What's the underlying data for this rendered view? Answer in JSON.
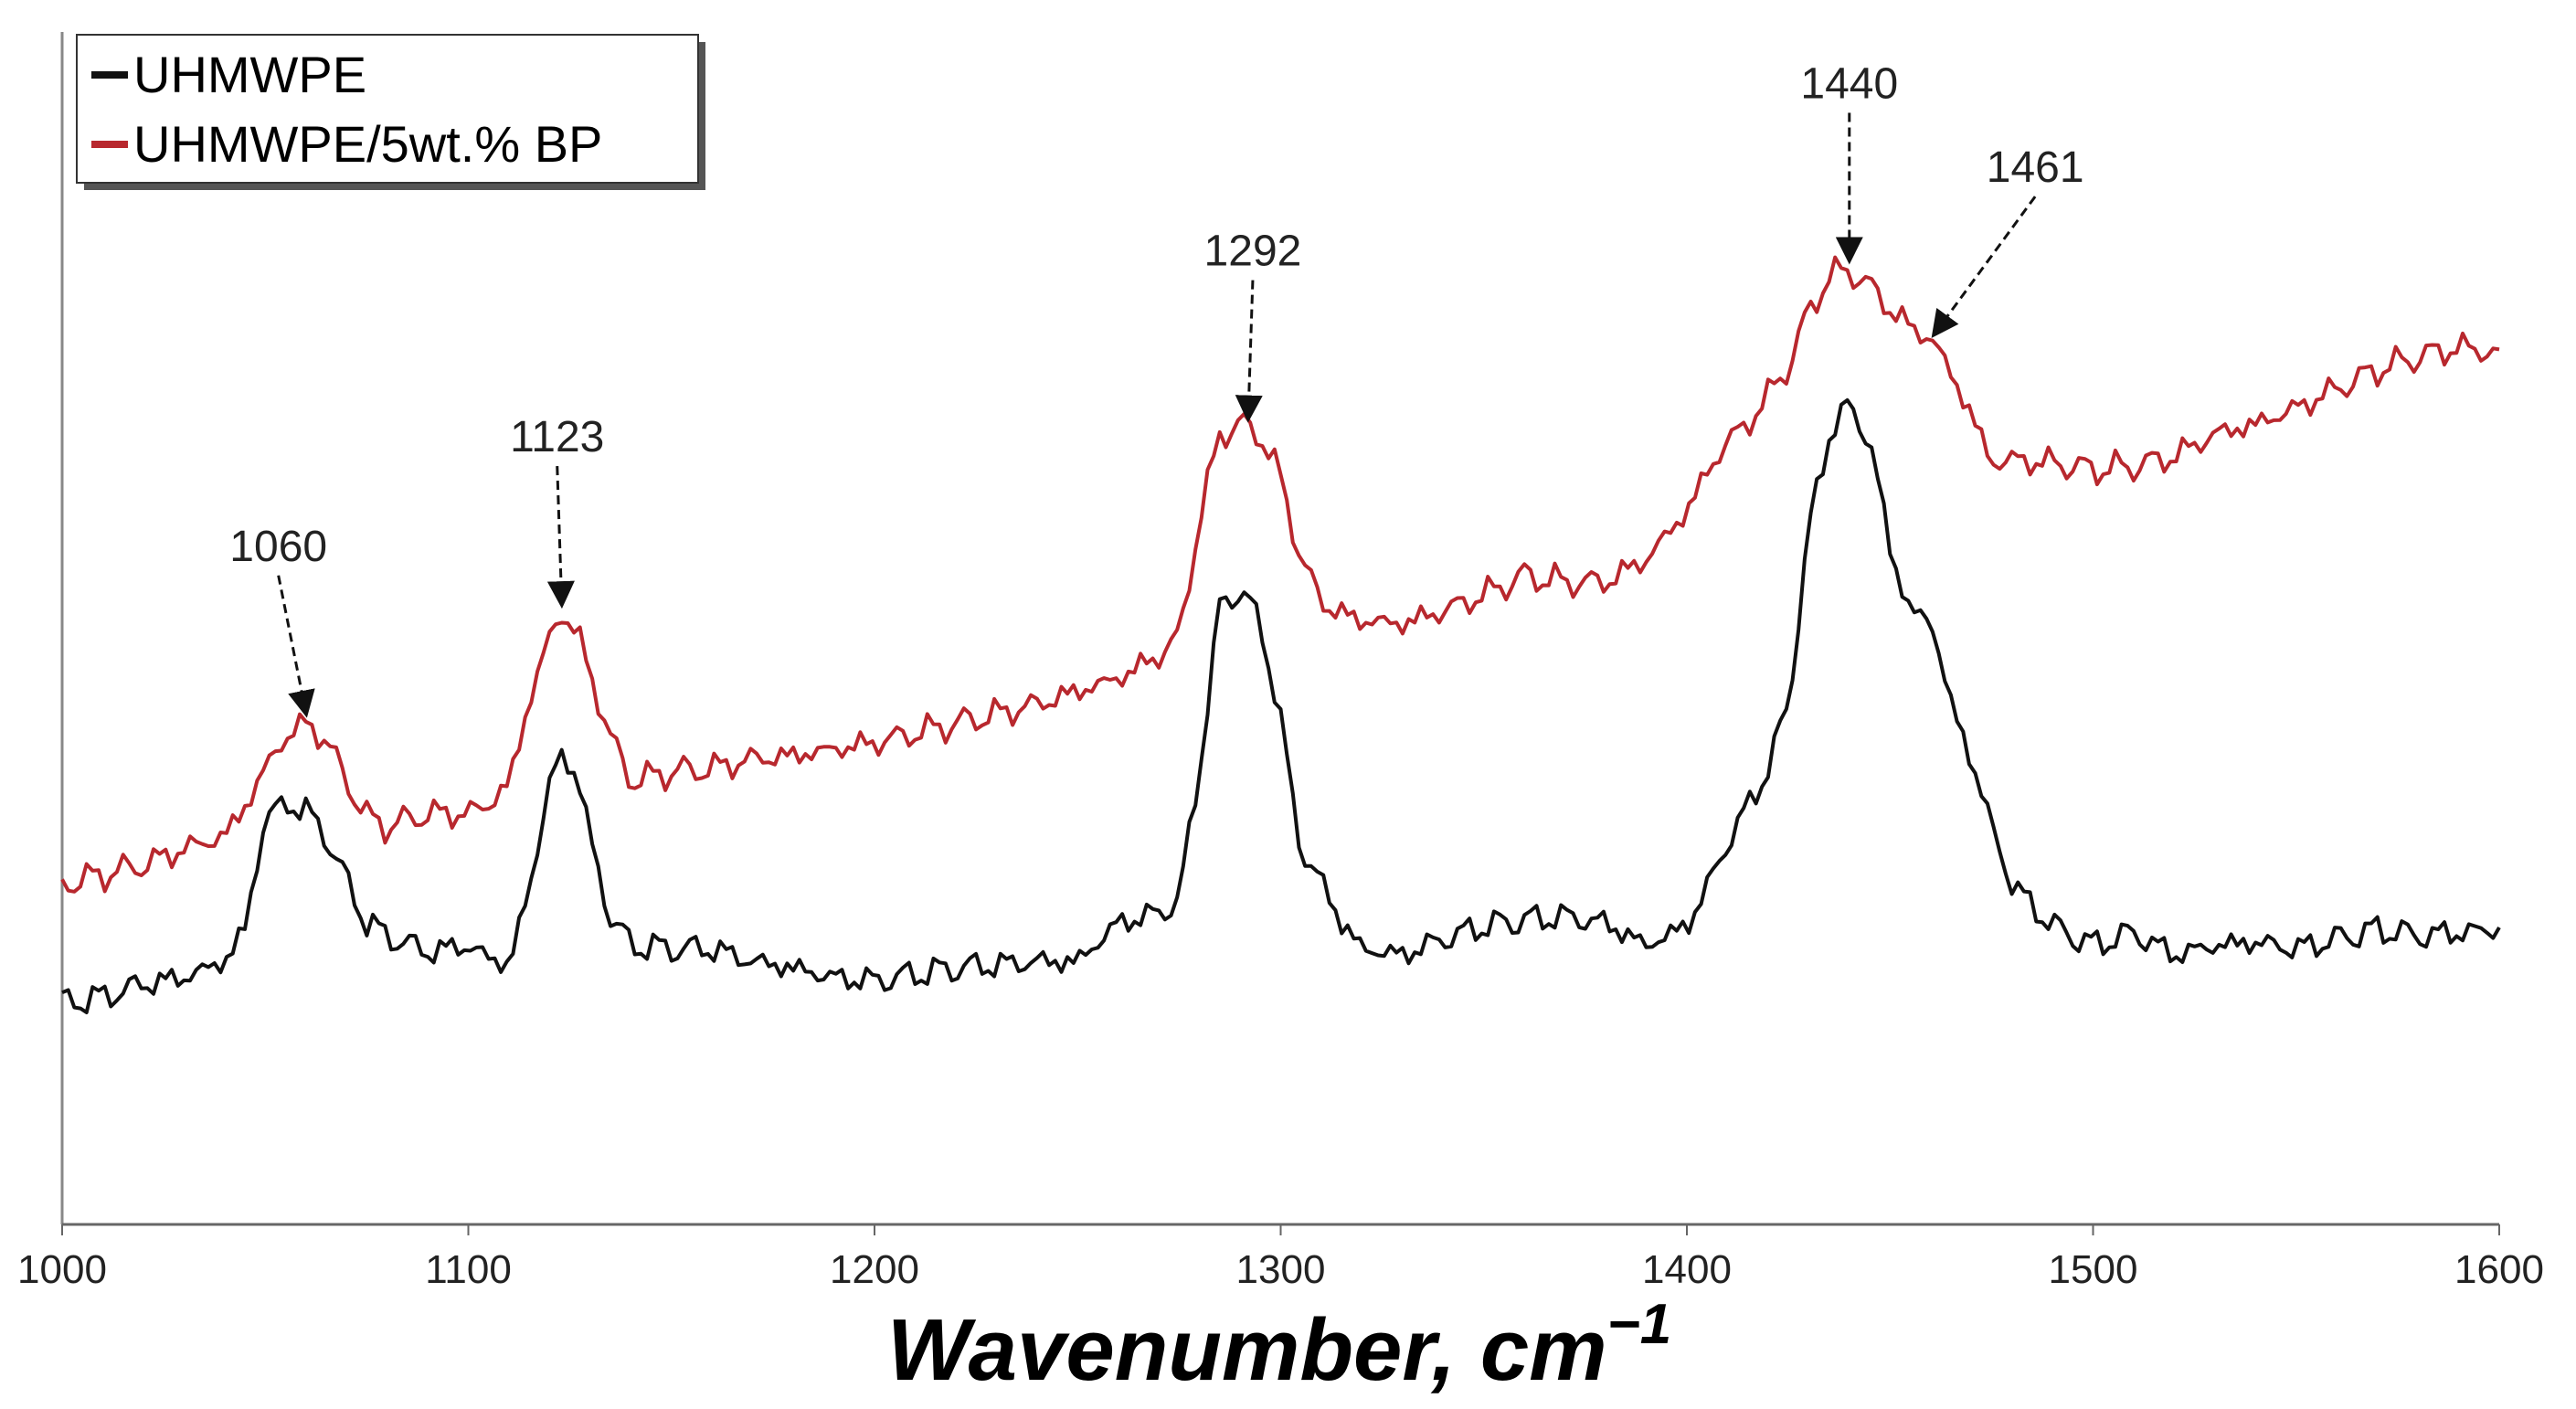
{
  "chart_data": {
    "type": "line",
    "title": "",
    "xlabel": "Wavenumber, cm",
    "xlabel_sup": "−1",
    "ylabel": "",
    "xlim": [
      1000,
      1600
    ],
    "x_ticks": [
      "1000",
      "1100",
      "1200",
      "1300",
      "1400",
      "1500",
      "1600"
    ],
    "grid": false,
    "legend_position": "top-left",
    "series": [
      {
        "name": "UHMWPE",
        "color": "#111111",
        "x": [
          1000,
          1010,
          1020,
          1030,
          1040,
          1045,
          1050,
          1055,
          1060,
          1065,
          1070,
          1075,
          1080,
          1090,
          1100,
          1105,
          1110,
          1115,
          1120,
          1123,
          1127,
          1130,
          1135,
          1140,
          1150,
          1160,
          1170,
          1180,
          1190,
          1200,
          1210,
          1220,
          1230,
          1240,
          1250,
          1260,
          1270,
          1275,
          1280,
          1285,
          1290,
          1295,
          1300,
          1305,
          1310,
          1315,
          1320,
          1330,
          1340,
          1350,
          1360,
          1370,
          1380,
          1390,
          1400,
          1405,
          1410,
          1415,
          1420,
          1425,
          1430,
          1435,
          1440,
          1445,
          1450,
          1455,
          1460,
          1465,
          1470,
          1475,
          1480,
          1490,
          1500,
          1510,
          1520,
          1530,
          1540,
          1550,
          1560,
          1570,
          1580,
          1590,
          1600
        ],
        "y": [
          0.0,
          0.4,
          1.2,
          1.6,
          2.6,
          4.6,
          11.6,
          12.4,
          12.0,
          10.4,
          7.6,
          5.0,
          4.2,
          3.2,
          3.6,
          2.8,
          2.4,
          7.0,
          13.8,
          15.2,
          14.4,
          10.0,
          5.4,
          3.6,
          3.4,
          3.4,
          2.6,
          2.2,
          1.6,
          1.4,
          1.8,
          2.2,
          2.4,
          2.6,
          2.6,
          5.0,
          5.6,
          6.4,
          14.6,
          24.6,
          25.8,
          23.6,
          17.6,
          9.4,
          7.6,
          5.0,
          3.4,
          3.0,
          4.0,
          4.8,
          5.2,
          5.4,
          5.0,
          3.6,
          4.8,
          7.2,
          10.0,
          12.2,
          14.6,
          18.6,
          29.4,
          35.4,
          37.2,
          35.0,
          28.4,
          24.2,
          24.0,
          18.6,
          15.2,
          11.0,
          7.4,
          4.8,
          3.6,
          4.4,
          3.0,
          3.6,
          3.8,
          3.4,
          4.0,
          4.6,
          4.2,
          4.4,
          4.6
        ]
      },
      {
        "name": "UHMWPE/5wt.% BP",
        "color": "#b8282e",
        "x": [
          1000,
          1010,
          1020,
          1030,
          1040,
          1045,
          1050,
          1055,
          1060,
          1065,
          1070,
          1075,
          1080,
          1090,
          1100,
          1105,
          1110,
          1115,
          1120,
          1123,
          1127,
          1130,
          1135,
          1140,
          1150,
          1160,
          1170,
          1180,
          1190,
          1200,
          1210,
          1220,
          1230,
          1240,
          1250,
          1260,
          1270,
          1275,
          1280,
          1285,
          1290,
          1295,
          1300,
          1305,
          1310,
          1315,
          1320,
          1330,
          1340,
          1350,
          1360,
          1370,
          1380,
          1390,
          1400,
          1405,
          1410,
          1415,
          1420,
          1425,
          1430,
          1435,
          1440,
          1445,
          1450,
          1455,
          1460,
          1465,
          1470,
          1475,
          1480,
          1490,
          1500,
          1510,
          1520,
          1530,
          1540,
          1550,
          1560,
          1570,
          1580,
          1590,
          1600
        ],
        "y": [
          7.4,
          8.0,
          8.6,
          9.6,
          10.4,
          12.2,
          14.6,
          16.6,
          17.4,
          16.4,
          13.8,
          11.6,
          11.0,
          11.8,
          11.8,
          12.4,
          13.6,
          18.8,
          22.8,
          24.2,
          23.0,
          20.4,
          16.6,
          13.8,
          14.4,
          14.6,
          15.2,
          15.4,
          15.8,
          16.2,
          16.8,
          17.4,
          18.0,
          18.6,
          19.4,
          20.2,
          21.6,
          22.8,
          30.0,
          35.4,
          36.0,
          35.4,
          32.6,
          27.6,
          25.0,
          24.2,
          23.8,
          23.6,
          24.4,
          25.4,
          26.6,
          26.2,
          26.2,
          27.6,
          30.6,
          33.0,
          35.0,
          36.0,
          37.8,
          39.6,
          43.0,
          45.2,
          45.6,
          44.6,
          43.2,
          42.0,
          41.4,
          39.2,
          36.6,
          33.6,
          33.8,
          33.6,
          33.2,
          33.4,
          34.0,
          35.4,
          36.0,
          37.0,
          38.2,
          39.4,
          40.2,
          40.8,
          40.4
        ]
      }
    ],
    "annotations": [
      {
        "text": "1060",
        "x": 1060,
        "series": "UHMWPE/5wt.% BP"
      },
      {
        "text": "1123",
        "x": 1123,
        "series": "UHMWPE/5wt.% BP"
      },
      {
        "text": "1292",
        "x": 1292,
        "series": "UHMWPE/5wt.% BP"
      },
      {
        "text": "1440",
        "x": 1440,
        "series": "UHMWPE/5wt.% BP"
      },
      {
        "text": "1461",
        "x": 1461,
        "series": "UHMWPE/5wt.% BP"
      }
    ]
  }
}
